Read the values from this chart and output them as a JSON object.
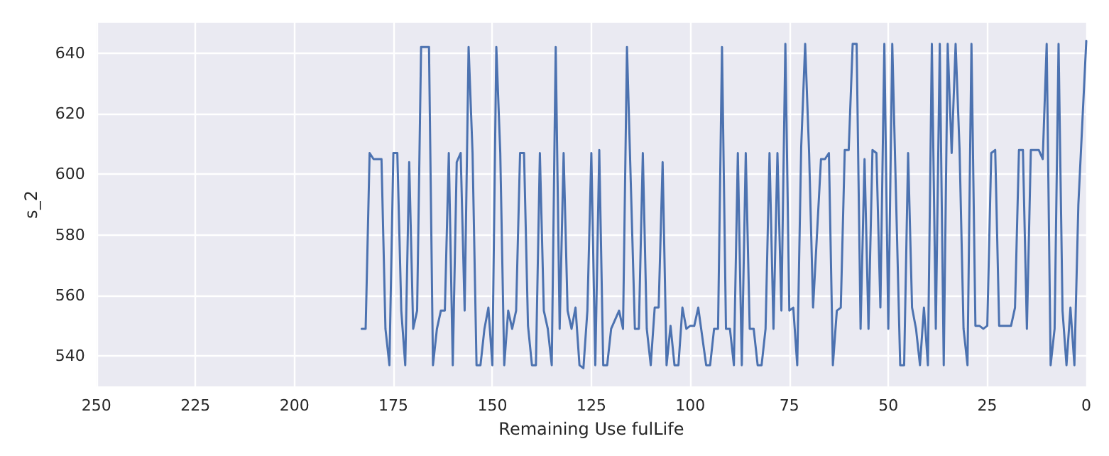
{
  "chart_data": {
    "type": "line",
    "xlabel": "Remaining Use fulLife",
    "ylabel": "s_2",
    "xlim": [
      250,
      0
    ],
    "xticks": [
      250,
      225,
      200,
      175,
      150,
      125,
      100,
      75,
      50,
      25,
      0
    ],
    "ylim": [
      530,
      650
    ],
    "yticks": [
      540,
      560,
      580,
      600,
      620,
      640
    ],
    "grid": true,
    "marker": "none",
    "line_style": "solid",
    "series": [
      {
        "color": "#4c72b0",
        "x": [
          183,
          182,
          181,
          180,
          178,
          177,
          176,
          175,
          174,
          173,
          172,
          171,
          170,
          169,
          168,
          166,
          165,
          164,
          163,
          162,
          161,
          160,
          159,
          158,
          157,
          156,
          155,
          154,
          153,
          152,
          151,
          150,
          149,
          148,
          147,
          146,
          145,
          144,
          143,
          142,
          141,
          140,
          139,
          138,
          137,
          136,
          135,
          134,
          133,
          132,
          131,
          130,
          129,
          128,
          127,
          126,
          125,
          124,
          123,
          122,
          121,
          120,
          118,
          117,
          116,
          114,
          113,
          112,
          111,
          110,
          109,
          108,
          107,
          106,
          105,
          104,
          103,
          102,
          101,
          100,
          99,
          98,
          96,
          95,
          94,
          93,
          92,
          91,
          90,
          89,
          88,
          87,
          86,
          85,
          84,
          83,
          82,
          81,
          80,
          79,
          78,
          77,
          76,
          75,
          74,
          73,
          72,
          71,
          70,
          69,
          67,
          66,
          65,
          64,
          63,
          62,
          61,
          60,
          59,
          58,
          57,
          56,
          55,
          54,
          53,
          52,
          51,
          50,
          49,
          47,
          46,
          45,
          44,
          43,
          42,
          41,
          40,
          39,
          38,
          37,
          36,
          35,
          34,
          33,
          32,
          31,
          30,
          29,
          28,
          27,
          26,
          25,
          24,
          23,
          22,
          21,
          20,
          19,
          18,
          17,
          16,
          15,
          14,
          13,
          12,
          11,
          10,
          9,
          8,
          7,
          6,
          5,
          4,
          3,
          2,
          0
        ],
        "values": [
          549,
          549,
          607,
          605,
          605,
          549,
          537,
          607,
          607,
          555,
          537,
          604,
          549,
          555,
          642,
          642,
          537,
          549,
          555,
          555,
          607,
          537,
          604,
          607,
          555,
          642,
          607,
          537,
          537,
          549,
          556,
          537,
          642,
          607,
          537,
          555,
          549,
          555,
          607,
          607,
          550,
          537,
          537,
          607,
          555,
          549,
          537,
          642,
          549,
          607,
          555,
          549,
          556,
          537,
          536,
          555,
          607,
          537,
          608,
          537,
          537,
          549,
          555,
          549,
          642,
          549,
          549,
          607,
          549,
          537,
          556,
          556,
          604,
          537,
          550,
          537,
          537,
          556,
          549,
          550,
          550,
          556,
          537,
          537,
          549,
          549,
          642,
          549,
          549,
          537,
          607,
          537,
          607,
          549,
          549,
          537,
          537,
          549,
          607,
          549,
          607,
          555,
          643,
          555,
          556,
          537,
          609,
          643,
          607,
          556,
          605,
          605,
          607,
          537,
          555,
          556,
          608,
          608,
          643,
          643,
          549,
          605,
          549,
          608,
          607,
          556,
          643,
          549,
          643,
          537,
          537,
          607,
          556,
          549,
          537,
          556,
          537,
          643,
          549,
          643,
          537,
          643,
          607,
          643,
          608,
          549,
          537,
          643,
          550,
          550,
          549,
          550,
          607,
          608,
          550,
          550,
          550,
          550,
          556,
          608,
          608,
          549,
          608,
          608,
          608,
          605,
          643,
          537,
          549,
          643,
          555,
          537,
          556,
          537,
          590,
          644
        ]
      }
    ]
  }
}
